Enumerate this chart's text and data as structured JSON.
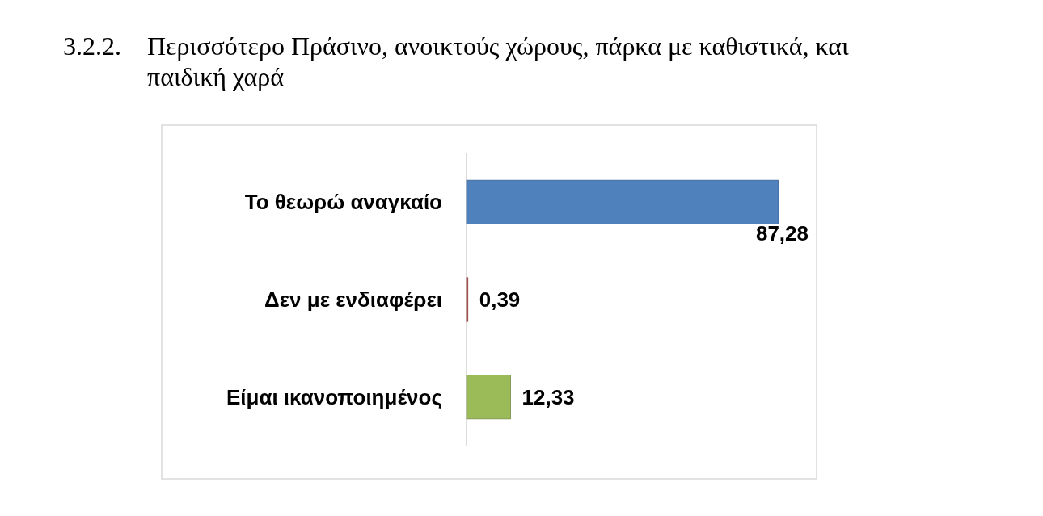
{
  "chart_data": {
    "type": "bar",
    "orientation": "horizontal",
    "title": "3.2.2. Περισσότερο Πράσινο, ανοικτούς χώρους, πάρκα με καθιστικά, και παιδική χαρά",
    "categories": [
      "Το θεωρώ αναγκαίο",
      "Δεν με ενδιαφέρει",
      "Είμαι ικανοποιημένος"
    ],
    "values": [
      87.28,
      0.39,
      12.33
    ],
    "colors": [
      "#4f81bd",
      "#c0504d",
      "#9bbb59"
    ],
    "value_labels": [
      "87,28",
      "0,39",
      "12,33"
    ],
    "tick_labels": "y"
  }
}
